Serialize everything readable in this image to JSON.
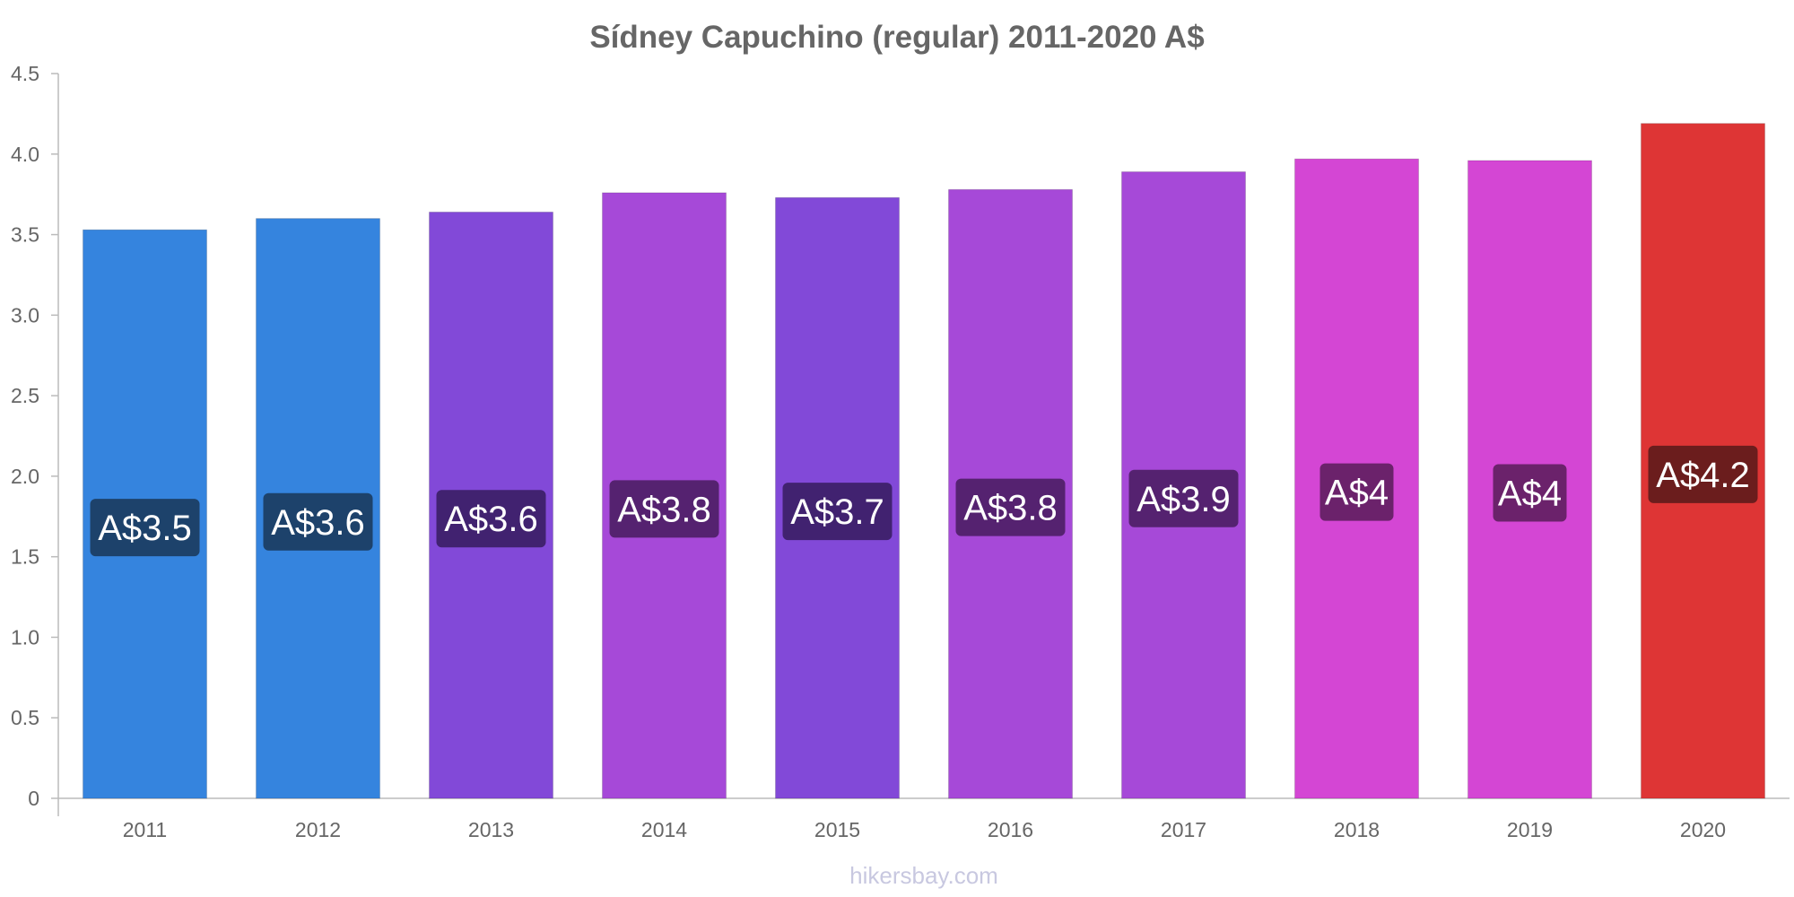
{
  "chart_data": {
    "type": "bar",
    "title": "Sídney Capuchino (regular) 2011-2020 A$",
    "xlabel": "",
    "ylabel": "",
    "categories": [
      "2011",
      "2012",
      "2013",
      "2014",
      "2015",
      "2016",
      "2017",
      "2018",
      "2019",
      "2020"
    ],
    "values": [
      3.53,
      3.6,
      3.64,
      3.76,
      3.73,
      3.78,
      3.89,
      3.97,
      3.96,
      4.19
    ],
    "data_labels": [
      "A$3.5",
      "A$3.6",
      "A$3.6",
      "A$3.8",
      "A$3.7",
      "A$3.8",
      "A$3.9",
      "A$4",
      "A$4",
      "A$4.2"
    ],
    "bar_colors": [
      "#3584de",
      "#3584de",
      "#8249d8",
      "#a649d8",
      "#8249d8",
      "#a649d8",
      "#a649d8",
      "#d446d4",
      "#d446d4",
      "#de3535"
    ],
    "label_colors": [
      "#1d426b",
      "#1d426b",
      "#412270",
      "#552270",
      "#412270",
      "#552270",
      "#552270",
      "#6b226b",
      "#6b226b",
      "#6b1d1d"
    ],
    "ylim": [
      0,
      4.5
    ],
    "yticks": [
      "0",
      "0.5",
      "1.0",
      "1.5",
      "2.0",
      "2.5",
      "3.0",
      "3.5",
      "4.0",
      "4.5"
    ],
    "grid": false,
    "legend": "none"
  },
  "watermark": "hikersbay.com"
}
